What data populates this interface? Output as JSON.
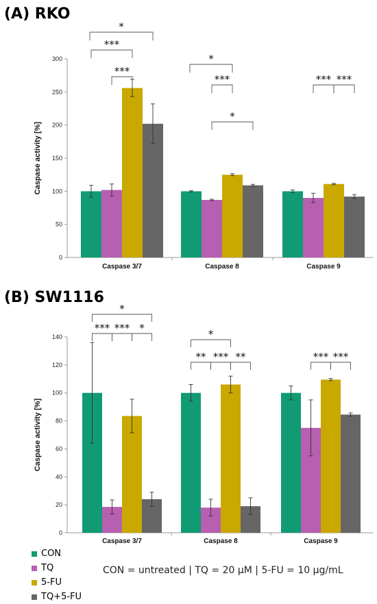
{
  "colors": {
    "CON": "#109b74",
    "TQ": "#b75fb0",
    "5-FU": "#c9a800",
    "TQ+5-FU": "#666666"
  },
  "legend": {
    "items": [
      "CON",
      "TQ",
      "5-FU",
      "TQ+5-FU"
    ]
  },
  "footnote": "CON = untreated | TQ = 20 μM |  5-FU = 10 μg/mL",
  "chart_data": [
    {
      "type": "bar",
      "panel_title": "(A) RKO",
      "ylabel": "Caspase activity [%]",
      "ylim": [
        0,
        300
      ],
      "yticks": [
        0,
        50,
        100,
        150,
        200,
        250,
        300
      ],
      "categories": [
        "Caspase 3/7",
        "Caspase 8",
        "Caspase 9"
      ],
      "series": [
        {
          "name": "CON",
          "values": [
            100,
            100,
            100
          ],
          "errors": [
            9,
            1,
            2
          ]
        },
        {
          "name": "TQ",
          "values": [
            102,
            87,
            90
          ],
          "errors": [
            9,
            1,
            7
          ]
        },
        {
          "name": "5-FU",
          "values": [
            256,
            125,
            111
          ],
          "errors": [
            13,
            1.5,
            1
          ]
        },
        {
          "name": "TQ+5-FU",
          "values": [
            202,
            109,
            92
          ],
          "errors": [
            30,
            1.5,
            3
          ]
        }
      ],
      "significance": [
        {
          "category": 0,
          "from": 0,
          "to": 3,
          "label": "*",
          "level": 3
        },
        {
          "category": 0,
          "from": 0,
          "to": 2,
          "label": "***",
          "level": 2
        },
        {
          "category": 0,
          "from": 1,
          "to": 2,
          "label": "***",
          "level": 1
        },
        {
          "category": 1,
          "from": 0,
          "to": 2,
          "label": "*",
          "level": 3
        },
        {
          "category": 1,
          "from": 1,
          "to": 2,
          "label": "***",
          "level": 2
        },
        {
          "category": 1,
          "from": 1,
          "to": 3,
          "label": "*",
          "level": 0
        },
        {
          "category": 2,
          "from": 1,
          "to": 2,
          "label": "***",
          "level": 2
        },
        {
          "category": 2,
          "from": 2,
          "to": 3,
          "label": "***",
          "level": 2
        }
      ]
    },
    {
      "type": "bar",
      "panel_title": "(B) SW1116",
      "ylabel": "Caspase activity [%]",
      "ylim": [
        0,
        140
      ],
      "yticks": [
        0,
        20,
        40,
        60,
        80,
        100,
        120,
        140
      ],
      "categories": [
        "Caspase 3/7",
        "Caspase 8",
        "Caspase 9"
      ],
      "series": [
        {
          "name": "CON",
          "values": [
            100,
            100,
            100
          ],
          "errors": [
            36,
            6,
            5
          ]
        },
        {
          "name": "TQ",
          "values": [
            18.5,
            18,
            75
          ],
          "errors": [
            5,
            6,
            20
          ]
        },
        {
          "name": "5-FU",
          "values": [
            83.5,
            106,
            109.5
          ],
          "errors": [
            12,
            6,
            0.8
          ]
        },
        {
          "name": "TQ+5-FU",
          "values": [
            24,
            19,
            84.5
          ],
          "errors": [
            5,
            6,
            1.2
          ]
        }
      ],
      "significance": [
        {
          "category": 0,
          "from": 0,
          "to": 3,
          "label": "*",
          "level": 1
        },
        {
          "category": 0,
          "from": 0,
          "to": 1,
          "label": "***",
          "level": 0
        },
        {
          "category": 0,
          "from": 1,
          "to": 2,
          "label": "***",
          "level": 0
        },
        {
          "category": 0,
          "from": 2,
          "to": 3,
          "label": "*",
          "level": 0
        },
        {
          "category": 1,
          "from": 0,
          "to": 2,
          "label": "*",
          "level": 1
        },
        {
          "category": 1,
          "from": 0,
          "to": 1,
          "label": "**",
          "level": 0
        },
        {
          "category": 1,
          "from": 1,
          "to": 2,
          "label": "***",
          "level": 0
        },
        {
          "category": 1,
          "from": 2,
          "to": 3,
          "label": "**",
          "level": 0
        },
        {
          "category": 2,
          "from": 1,
          "to": 2,
          "label": "***",
          "level": 0
        },
        {
          "category": 2,
          "from": 2,
          "to": 3,
          "label": "***",
          "level": 0
        }
      ]
    }
  ]
}
